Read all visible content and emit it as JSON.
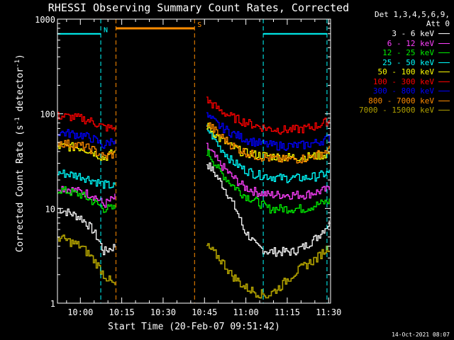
{
  "chart_data": {
    "type": "line",
    "title": "RHESSI Observing Summary Count Rates, Corrected",
    "xlabel": "Start Time (20-Feb-07 09:51:42)",
    "ylabel_main": "Corrected Count Rate (s",
    "ylabel_exp1": "-1",
    "ylabel_mid": " detector",
    "ylabel_exp2": "-1",
    "ylabel_end": ")",
    "y_scale": "log",
    "ylim": [
      1,
      1000
    ],
    "xlim_minutes": [
      0,
      99
    ],
    "x_ticks": [
      {
        "label": "10:00",
        "min": 8.3
      },
      {
        "label": "10:15",
        "min": 23.3
      },
      {
        "label": "10:30",
        "min": 38.3
      },
      {
        "label": "10:45",
        "min": 53.3
      },
      {
        "label": "11:00",
        "min": 68.3
      },
      {
        "label": "11:15",
        "min": 83.3
      },
      {
        "label": "11:30",
        "min": 98.3
      }
    ],
    "y_ticks": [
      {
        "label": "1",
        "value": 1
      },
      {
        "label": "10",
        "value": 10
      },
      {
        "label": "100",
        "value": 100
      },
      {
        "label": "1000",
        "value": 1000
      }
    ],
    "legend_header": [
      "Det 1,3,4,5,6,9,",
      "Att 0"
    ],
    "series": [
      {
        "name": "3 - 6 keV",
        "color": "#ffffff",
        "pre": [
          10,
          9,
          8,
          6,
          3.5,
          4
        ],
        "post": [
          30,
          20,
          12,
          6,
          4,
          3.5,
          3.5,
          3.5,
          4,
          5,
          7
        ]
      },
      {
        "name": "6 - 12 keV",
        "color": "#ff40ff",
        "pre": [
          17,
          16,
          15,
          14,
          11,
          13
        ],
        "post": [
          45,
          30,
          22,
          17,
          15,
          14,
          14,
          14,
          14,
          15,
          16
        ]
      },
      {
        "name": "12 - 25 keV",
        "color": "#00ee00",
        "pre": [
          16,
          15,
          14,
          12,
          10,
          10
        ],
        "post": [
          40,
          25,
          18,
          14,
          12,
          10,
          10,
          10,
          10,
          11,
          12
        ]
      },
      {
        "name": "25 - 50 keV",
        "color": "#00ffff",
        "pre": [
          24,
          23,
          22,
          20,
          18,
          17
        ],
        "post": [
          70,
          45,
          32,
          26,
          23,
          22,
          21,
          21,
          21,
          22,
          24
        ]
      },
      {
        "name": "50 - 100 keV",
        "color": "#ffff00",
        "pre": [
          45,
          45,
          44,
          40,
          34,
          40
        ],
        "post": [
          75,
          55,
          45,
          39,
          37,
          36,
          35,
          35,
          35,
          36,
          38
        ]
      },
      {
        "name": "100 - 300 keV",
        "color": "#ff0000",
        "pre": [
          95,
          93,
          90,
          83,
          72,
          70
        ],
        "post": [
          140,
          110,
          93,
          83,
          75,
          70,
          68,
          68,
          70,
          75,
          85
        ]
      },
      {
        "name": "300 - 800 keV",
        "color": "#0000ff",
        "pre": [
          64,
          62,
          60,
          55,
          46,
          55
        ],
        "post": [
          95,
          75,
          63,
          55,
          50,
          47,
          46,
          46,
          47,
          50,
          56
        ]
      },
      {
        "name": "800 - 7000 keV",
        "color": "#ff8c00",
        "pre": [
          50,
          48,
          46,
          42,
          35,
          38
        ],
        "post": [
          80,
          60,
          47,
          40,
          36,
          34,
          33,
          33,
          34,
          37,
          42
        ]
      },
      {
        "name": "7000 - 15000 keV",
        "color": "#b0a000",
        "pre": [
          5,
          4.5,
          4,
          3,
          2,
          1.5
        ],
        "post": [
          4,
          3,
          2,
          1.5,
          1.3,
          1.2,
          1.5,
          2,
          2.5,
          3,
          4
        ]
      }
    ],
    "pre_span_min": [
      0,
      20.8
    ],
    "post_span_min": [
      54.0,
      98.5
    ],
    "events": [
      {
        "label": "N",
        "color": "#00ffff",
        "type": "night",
        "start_min": 0,
        "end_min": 15.7,
        "level": 700
      },
      {
        "label": "S",
        "color": "#ff8c00",
        "type": "saa",
        "start_min": 21.2,
        "end_min": 49.7,
        "level": 800
      },
      {
        "label": "",
        "color": "#00ffff",
        "type": "night",
        "start_min": 74.6,
        "end_min": 97.7,
        "level": 700
      }
    ],
    "timestamp": "14-Oct-2021 08:07"
  }
}
